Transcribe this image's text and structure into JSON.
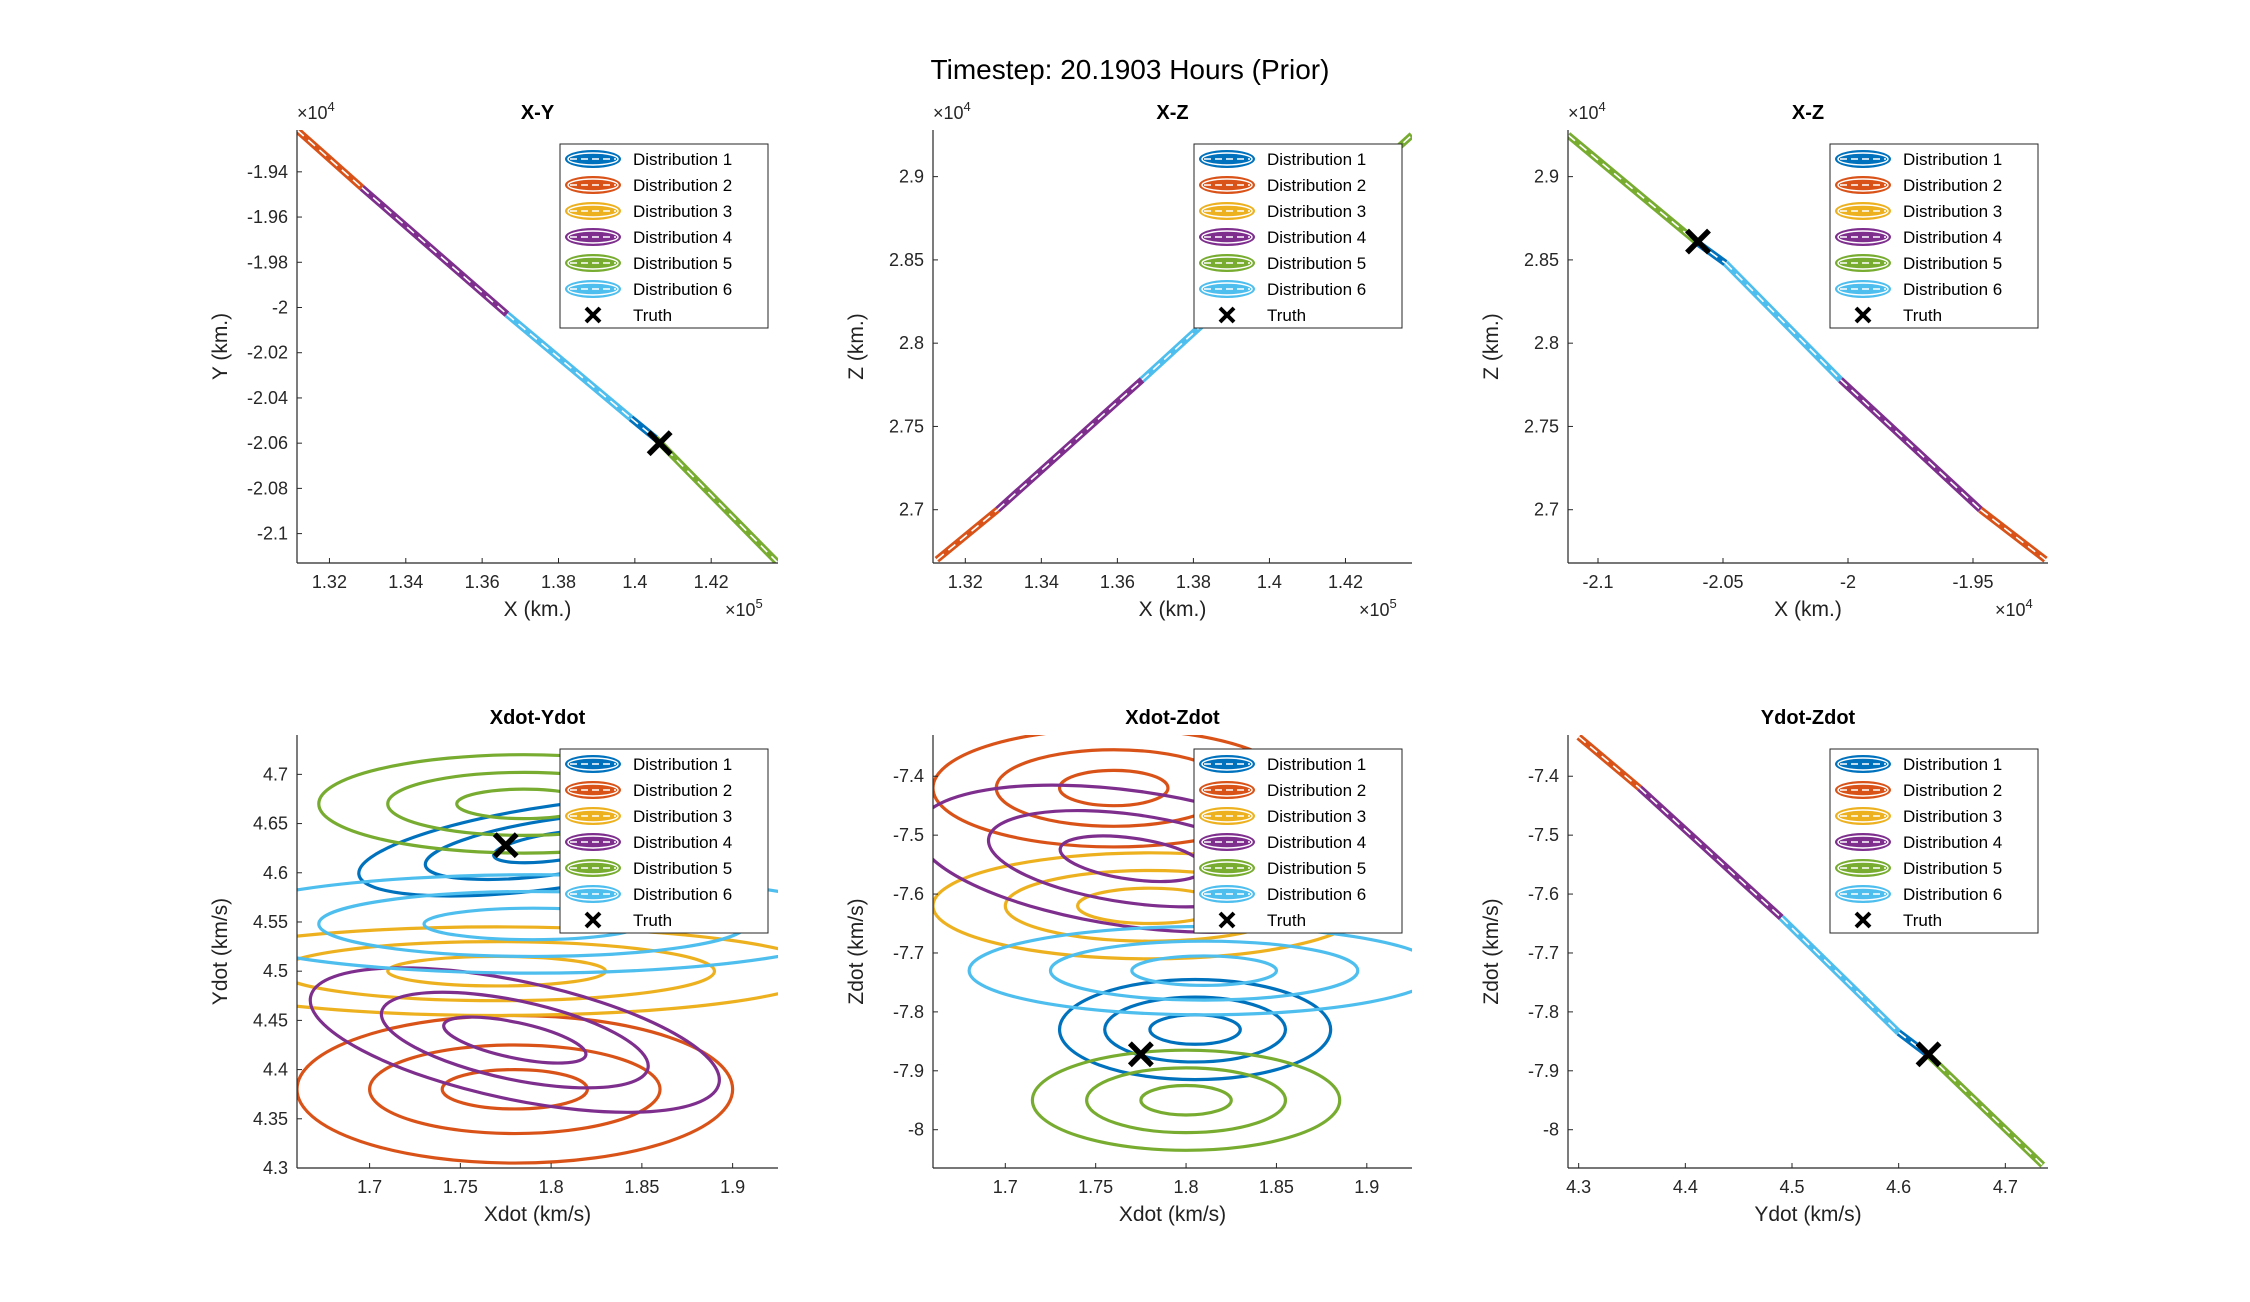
{
  "figure_title": "Timestep: 20.1903 Hours (Prior)",
  "legend_entries": [
    "Distribution 1",
    "Distribution 2",
    "Distribution 3",
    "Distribution 4",
    "Distribution 5",
    "Distribution 6",
    "Truth"
  ],
  "colors": {
    "Distribution 1": "#0072BD",
    "Distribution 2": "#D95319",
    "Distribution 3": "#EDB120",
    "Distribution 4": "#7E2F8E",
    "Distribution 5": "#77AC30",
    "Distribution 6": "#4DBEEE",
    "Truth": "#000000"
  },
  "chart_data": [
    {
      "type": "line",
      "title": "X-Y",
      "xlabel": "X (km.)",
      "ylabel": "Y (km.)",
      "x_exponent": "×10^5",
      "y_exponent": "×10^4",
      "xlim": [
        1.3115,
        1.4375
      ],
      "ylim": [
        -2.113,
        -1.9215
      ],
      "xticks": [
        1.32,
        1.34,
        1.36,
        1.38,
        1.4,
        1.42
      ],
      "xtick_labels": [
        "1.32",
        "1.34",
        "1.36",
        "1.38",
        "1.4",
        "1.42"
      ],
      "yticks": [
        -1.94,
        -1.96,
        -1.98,
        -2,
        -2.02,
        -2.04,
        -2.06,
        -2.08,
        -2.1
      ],
      "ytick_labels": [
        "-1.94",
        "-1.96",
        "-1.98",
        "-2",
        "-2.02",
        "-2.04",
        "-2.06",
        "-2.08",
        "-2.1"
      ],
      "legend": "top-right",
      "series": [
        {
          "name": "Distribution 2",
          "kind": "line",
          "x": [
            1.3115,
            1.3285
          ],
          "y": [
            -1.9215,
            -1.947
          ]
        },
        {
          "name": "Distribution 4",
          "kind": "line",
          "x": [
            1.3285,
            1.3665
          ],
          "y": [
            -1.947,
            -2.003
          ]
        },
        {
          "name": "Distribution 6",
          "kind": "line",
          "x": [
            1.3665,
            1.399
          ],
          "y": [
            -2.003,
            -2.049
          ]
        },
        {
          "name": "Distribution 1",
          "kind": "line",
          "x": [
            1.399,
            1.4055
          ],
          "y": [
            -2.049,
            -2.058
          ]
        },
        {
          "name": "Distribution 5",
          "kind": "line",
          "x": [
            1.4055,
            1.4375
          ],
          "y": [
            -2.058,
            -2.113
          ]
        },
        {
          "name": "Truth",
          "kind": "marker",
          "x": [
            1.4065
          ],
          "y": [
            -2.06
          ]
        }
      ]
    },
    {
      "type": "line",
      "title": "X-Z",
      "xlabel": "X (km.)",
      "ylabel": "Z (km.)",
      "x_exponent": "×10^5",
      "y_exponent": "×10^4",
      "xlim": [
        1.3115,
        1.4375
      ],
      "ylim": [
        2.668,
        2.928
      ],
      "xticks": [
        1.32,
        1.34,
        1.36,
        1.38,
        1.4,
        1.42
      ],
      "xtick_labels": [
        "1.32",
        "1.34",
        "1.36",
        "1.38",
        "1.4",
        "1.42"
      ],
      "yticks": [
        2.7,
        2.75,
        2.8,
        2.85,
        2.9
      ],
      "ytick_labels": [
        "2.7",
        "2.75",
        "2.8",
        "2.85",
        "2.9"
      ],
      "legend": "top-right",
      "series": [
        {
          "name": "Distribution 2",
          "kind": "line",
          "x": [
            1.3125,
            1.3285
          ],
          "y": [
            2.67,
            2.7
          ]
        },
        {
          "name": "Distribution 4",
          "kind": "line",
          "x": [
            1.3285,
            1.3665
          ],
          "y": [
            2.7,
            2.778
          ]
        },
        {
          "name": "Distribution 6",
          "kind": "line",
          "x": [
            1.3665,
            1.4
          ],
          "y": [
            2.778,
            2.848
          ]
        },
        {
          "name": "Distribution 1",
          "kind": "line",
          "x": [
            1.4,
            1.406
          ],
          "y": [
            2.848,
            2.86
          ]
        },
        {
          "name": "Distribution 5",
          "kind": "line",
          "x": [
            1.406,
            1.4375
          ],
          "y": [
            2.86,
            2.925
          ]
        }
      ]
    },
    {
      "type": "line",
      "title": "X-Z",
      "xlabel": "X (km.)",
      "ylabel": "Z (km.)",
      "x_exponent": "×10^4",
      "y_exponent": "×10^4",
      "xlim": [
        -2.112,
        -1.92
      ],
      "ylim": [
        2.668,
        2.928
      ],
      "xticks": [
        -2.1,
        -2.05,
        -2,
        -1.95
      ],
      "xtick_labels": [
        "-2.1",
        "-2.05",
        "-2",
        "-1.95"
      ],
      "yticks": [
        2.7,
        2.75,
        2.8,
        2.85,
        2.9
      ],
      "ytick_labels": [
        "2.7",
        "2.75",
        "2.8",
        "2.85",
        "2.9"
      ],
      "legend": "top-right",
      "series": [
        {
          "name": "Distribution 5",
          "kind": "line",
          "x": [
            -2.112,
            -2.06
          ],
          "y": [
            2.925,
            2.86
          ]
        },
        {
          "name": "Distribution 1",
          "kind": "line",
          "x": [
            -2.06,
            -2.049
          ],
          "y": [
            2.86,
            2.848
          ]
        },
        {
          "name": "Distribution 6",
          "kind": "line",
          "x": [
            -2.049,
            -2.003
          ],
          "y": [
            2.848,
            2.778
          ]
        },
        {
          "name": "Distribution 4",
          "kind": "line",
          "x": [
            -2.003,
            -1.947
          ],
          "y": [
            2.778,
            2.7
          ]
        },
        {
          "name": "Distribution 2",
          "kind": "line",
          "x": [
            -1.947,
            -1.921
          ],
          "y": [
            2.7,
            2.67
          ]
        },
        {
          "name": "Truth",
          "kind": "marker",
          "x": [
            -2.06
          ],
          "y": [
            2.861
          ]
        }
      ]
    },
    {
      "type": "line",
      "title": "Xdot-Ydot",
      "xlabel": "Xdot (km/s)",
      "ylabel": "Ydot (km/s)",
      "xlim": [
        1.66,
        1.925
      ],
      "ylim": [
        4.3,
        4.74
      ],
      "xticks": [
        1.7,
        1.75,
        1.8,
        1.85,
        1.9
      ],
      "xtick_labels": [
        "1.7",
        "1.75",
        "1.8",
        "1.85",
        "1.9"
      ],
      "yticks": [
        4.3,
        4.35,
        4.4,
        4.45,
        4.5,
        4.55,
        4.6,
        4.65,
        4.7
      ],
      "ytick_labels": [
        "4.3",
        "4.35",
        "4.4",
        "4.45",
        "4.5",
        "4.55",
        "4.6",
        "4.65",
        "4.7"
      ],
      "legend": "top-right",
      "series": [
        {
          "name": "Distribution 1",
          "kind": "ellipses",
          "cx": 1.805,
          "cy": 4.627,
          "rx": [
            0.037,
            0.075,
            0.112
          ],
          "ry": [
            0.014,
            0.028,
            0.042
          ],
          "rotation_deg": -8
        },
        {
          "name": "Distribution 2",
          "kind": "ellipses",
          "cx": 1.78,
          "cy": 4.38,
          "rx": [
            0.04,
            0.08,
            0.12
          ],
          "ry": [
            0.02,
            0.045,
            0.075
          ],
          "rotation_deg": 0
        },
        {
          "name": "Distribution 3",
          "kind": "ellipses",
          "cx": 1.77,
          "cy": 4.5,
          "rx": [
            0.06,
            0.12,
            0.18
          ],
          "ry": [
            0.015,
            0.03,
            0.045
          ],
          "rotation_deg": 0
        },
        {
          "name": "Distribution 4",
          "kind": "ellipses",
          "cx": 1.78,
          "cy": 4.43,
          "rx": [
            0.04,
            0.075,
            0.115
          ],
          "ry": [
            0.018,
            0.04,
            0.06
          ],
          "rotation_deg": 12
        },
        {
          "name": "Distribution 5",
          "kind": "ellipses",
          "cx": 1.785,
          "cy": 4.67,
          "rx": [
            0.037,
            0.075,
            0.113
          ],
          "ry": [
            0.015,
            0.032,
            0.05
          ],
          "rotation_deg": 0
        },
        {
          "name": "Distribution 6",
          "kind": "ellipses",
          "cx": 1.79,
          "cy": 4.548,
          "rx": [
            0.06,
            0.118,
            0.18
          ],
          "ry": [
            0.016,
            0.033,
            0.05
          ],
          "rotation_deg": 0
        },
        {
          "name": "Truth",
          "kind": "marker",
          "x": [
            1.775
          ],
          "y": [
            4.628
          ]
        }
      ]
    },
    {
      "type": "line",
      "title": "Xdot-Zdot",
      "xlabel": "Xdot (km/s)",
      "ylabel": "Zdot (km/s)",
      "xlim": [
        1.66,
        1.925
      ],
      "ylim": [
        -8.065,
        -7.33
      ],
      "xticks": [
        1.7,
        1.75,
        1.8,
        1.85,
        1.9
      ],
      "xtick_labels": [
        "1.7",
        "1.75",
        "1.8",
        "1.85",
        "1.9"
      ],
      "yticks": [
        -7.4,
        -7.5,
        -7.6,
        -7.7,
        -7.8,
        -7.9,
        -8
      ],
      "ytick_labels": [
        "-7.4",
        "-7.5",
        "-7.6",
        "-7.7",
        "-7.8",
        "-7.9",
        "-8"
      ],
      "legend": "top-right",
      "series": [
        {
          "name": "Distribution 1",
          "kind": "ellipses",
          "cx": 1.805,
          "cy": -7.83,
          "rx": [
            0.025,
            0.05,
            0.075
          ],
          "ry": [
            0.025,
            0.055,
            0.085
          ],
          "rotation_deg": 0
        },
        {
          "name": "Distribution 2",
          "kind": "ellipses",
          "cx": 1.76,
          "cy": -7.42,
          "rx": [
            0.03,
            0.065,
            0.1
          ],
          "ry": [
            0.03,
            0.065,
            0.1
          ],
          "rotation_deg": 0
        },
        {
          "name": "Distribution 3",
          "kind": "ellipses",
          "cx": 1.78,
          "cy": -7.62,
          "rx": [
            0.04,
            0.08,
            0.12
          ],
          "ry": [
            0.03,
            0.06,
            0.09
          ],
          "rotation_deg": 0
        },
        {
          "name": "Distribution 4",
          "kind": "ellipses",
          "cx": 1.77,
          "cy": -7.54,
          "rx": [
            0.04,
            0.08,
            0.12
          ],
          "ry": [
            0.035,
            0.075,
            0.115
          ],
          "rotation_deg": 8
        },
        {
          "name": "Distribution 5",
          "kind": "ellipses",
          "cx": 1.8,
          "cy": -7.95,
          "rx": [
            0.025,
            0.055,
            0.085
          ],
          "ry": [
            0.025,
            0.055,
            0.085
          ],
          "rotation_deg": 0
        },
        {
          "name": "Distribution 6",
          "kind": "ellipses",
          "cx": 1.81,
          "cy": -7.73,
          "rx": [
            0.04,
            0.085,
            0.13
          ],
          "ry": [
            0.025,
            0.05,
            0.075
          ],
          "rotation_deg": 0
        },
        {
          "name": "Truth",
          "kind": "marker",
          "x": [
            1.775
          ],
          "y": [
            -7.872
          ]
        }
      ]
    },
    {
      "type": "line",
      "title": "Ydot-Zdot",
      "xlabel": "Ydot (km/s)",
      "ylabel": "Zdot (km/s)",
      "xlim": [
        4.29,
        4.74
      ],
      "ylim": [
        -8.065,
        -7.33
      ],
      "xticks": [
        4.3,
        4.4,
        4.5,
        4.6,
        4.7
      ],
      "xtick_labels": [
        "4.3",
        "4.4",
        "4.5",
        "4.6",
        "4.7"
      ],
      "yticks": [
        -7.4,
        -7.5,
        -7.6,
        -7.7,
        -7.8,
        -7.9,
        -8
      ],
      "ytick_labels": [
        "-7.4",
        "-7.5",
        "-7.6",
        "-7.7",
        "-7.8",
        "-7.9",
        "-8"
      ],
      "legend": "top-right",
      "series": [
        {
          "name": "Distribution 2",
          "kind": "line",
          "x": [
            4.3,
            4.357
          ],
          "y": [
            -7.333,
            -7.42
          ]
        },
        {
          "name": "Distribution 4",
          "kind": "line",
          "x": [
            4.357,
            4.49
          ],
          "y": [
            -7.42,
            -7.64
          ]
        },
        {
          "name": "Distribution 6",
          "kind": "line",
          "x": [
            4.49,
            4.6
          ],
          "y": [
            -7.64,
            -7.835
          ]
        },
        {
          "name": "Distribution 1",
          "kind": "line",
          "x": [
            4.6,
            4.627
          ],
          "y": [
            -7.835,
            -7.872
          ]
        },
        {
          "name": "Distribution 5",
          "kind": "line",
          "x": [
            4.627,
            4.735
          ],
          "y": [
            -7.872,
            -8.06
          ]
        },
        {
          "name": "Truth",
          "kind": "marker",
          "x": [
            4.628
          ],
          "y": [
            -7.872
          ]
        }
      ]
    }
  ]
}
